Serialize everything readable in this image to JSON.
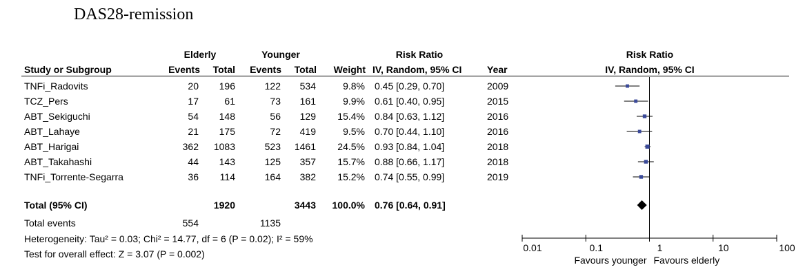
{
  "title": "DAS28-remission",
  "header": {
    "group1": "Elderly",
    "group2": "Younger",
    "rr_top": "Risk Ratio",
    "study": "Study or Subgroup",
    "events1": "Events",
    "total1": "Total",
    "events2": "Events",
    "total2": "Total",
    "weight": "Weight",
    "rr_method": "IV, Random, 95% CI",
    "year": "Year",
    "plot_top": "Risk Ratio",
    "plot_method": "IV, Random, 95% CI"
  },
  "studies": [
    {
      "name": "TNFi_Radovits",
      "e1": "20",
      "n1": "196",
      "e2": "122",
      "n2": "534",
      "weight": "9.8%",
      "rr_text": "0.45 [0.29, 0.70]",
      "year": "2009"
    },
    {
      "name": "TCZ_Pers",
      "e1": "17",
      "n1": "61",
      "e2": "73",
      "n2": "161",
      "weight": "9.9%",
      "rr_text": "0.61 [0.40, 0.95]",
      "year": "2015"
    },
    {
      "name": "ABT_Sekiguchi",
      "e1": "54",
      "n1": "148",
      "e2": "56",
      "n2": "129",
      "weight": "15.4%",
      "rr_text": "0.84 [0.63, 1.12]",
      "year": "2016"
    },
    {
      "name": "ABT_Lahaye",
      "e1": "21",
      "n1": "175",
      "e2": "72",
      "n2": "419",
      "weight": "9.5%",
      "rr_text": "0.70 [0.44, 1.10]",
      "year": "2016"
    },
    {
      "name": "ABT_Harigai",
      "e1": "362",
      "n1": "1083",
      "e2": "523",
      "n2": "1461",
      "weight": "24.5%",
      "rr_text": "0.93 [0.84, 1.04]",
      "year": "2018"
    },
    {
      "name": "ABT_Takahashi",
      "e1": "44",
      "n1": "143",
      "e2": "125",
      "n2": "357",
      "weight": "15.7%",
      "rr_text": "0.88 [0.66, 1.17]",
      "year": "2018"
    },
    {
      "name": "TNFi_Torrente-Segarra",
      "e1": "36",
      "n1": "114",
      "e2": "164",
      "n2": "382",
      "weight": "15.2%",
      "rr_text": "0.74 [0.55, 0.99]",
      "year": "2019"
    }
  ],
  "total": {
    "label": "Total (95% CI)",
    "n1": "1920",
    "n2": "3443",
    "weight": "100.0%",
    "rr_text": "0.76 [0.64, 0.91]"
  },
  "total_events": {
    "label": "Total events",
    "e1": "554",
    "e2": "1135"
  },
  "heterogeneity": "Heterogeneity: Tau² = 0.03; Chi² = 14.77, df = 6 (P = 0.02); I² = 59%",
  "overall_effect": "Test for overall effect: Z = 3.07 (P = 0.002)",
  "axis": {
    "ticks": [
      "0.01",
      "0.1",
      "1",
      "10",
      "100"
    ],
    "left_label": "Favours younger",
    "right_label": "Favours elderly"
  },
  "colors": {
    "marker": "#3b4a9a",
    "text": "#000000"
  },
  "chart_data": {
    "type": "forest",
    "x_scale": "log",
    "xlim": [
      0.01,
      100
    ],
    "xticks": [
      0.01,
      0.1,
      1,
      10,
      100
    ],
    "reference_line": 1,
    "points": [
      {
        "study": "TNFi_Radovits",
        "rr": 0.45,
        "ci": [
          0.29,
          0.7
        ],
        "weight": 9.8
      },
      {
        "study": "TCZ_Pers",
        "rr": 0.61,
        "ci": [
          0.4,
          0.95
        ],
        "weight": 9.9
      },
      {
        "study": "ABT_Sekiguchi",
        "rr": 0.84,
        "ci": [
          0.63,
          1.12
        ],
        "weight": 15.4
      },
      {
        "study": "ABT_Lahaye",
        "rr": 0.7,
        "ci": [
          0.44,
          1.1
        ],
        "weight": 9.5
      },
      {
        "study": "ABT_Harigai",
        "rr": 0.93,
        "ci": [
          0.84,
          1.04
        ],
        "weight": 24.5
      },
      {
        "study": "ABT_Takahashi",
        "rr": 0.88,
        "ci": [
          0.66,
          1.17
        ],
        "weight": 15.7
      },
      {
        "study": "TNFi_Torrente-Segarra",
        "rr": 0.74,
        "ci": [
          0.55,
          0.99
        ],
        "weight": 15.2
      }
    ],
    "summary": {
      "rr": 0.76,
      "ci": [
        0.64,
        0.91
      ]
    }
  }
}
